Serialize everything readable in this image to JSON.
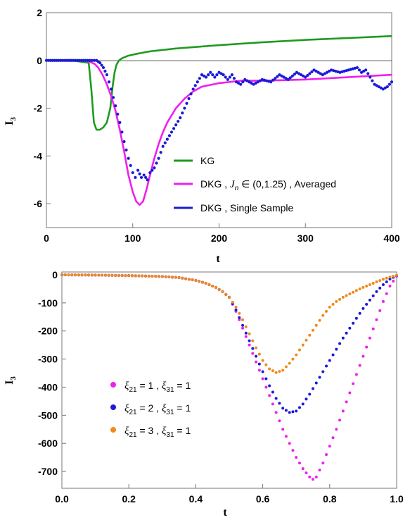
{
  "chart_data": [
    {
      "type": "line",
      "xlabel": "t",
      "ylabel": "I",
      "ylabel_sub": "3",
      "xlim": [
        0,
        400
      ],
      "ylim": [
        -7,
        2
      ],
      "xticks": [
        "0",
        "100",
        "200",
        "300",
        "400"
      ],
      "yticks": [
        "2",
        "0",
        "-2",
        "-4",
        "-6"
      ],
      "legend_position": "lower-right",
      "series": [
        {
          "name": "KG",
          "color": "#1f9a1f",
          "style": "line",
          "x": [
            0,
            30,
            49,
            52,
            55,
            58,
            62,
            66,
            70,
            74,
            77,
            79,
            81,
            84,
            88,
            95,
            105,
            120,
            150,
            200,
            250,
            300,
            350,
            400
          ],
          "y": [
            0,
            0,
            -0.1,
            -1.2,
            -2.6,
            -2.9,
            -2.9,
            -2.8,
            -2.6,
            -2.0,
            -1.0,
            -0.5,
            -0.2,
            0.0,
            0.1,
            0.2,
            0.28,
            0.38,
            0.5,
            0.64,
            0.76,
            0.86,
            0.94,
            1.02
          ]
        },
        {
          "name_parts": [
            "DKG , ",
            "J",
            "n",
            " ∈ (0,1.25) , Averaged"
          ],
          "color": "#ee1fee",
          "style": "line",
          "x": [
            0,
            40,
            50,
            56,
            60,
            65,
            70,
            75,
            80,
            85,
            90,
            95,
            100,
            104,
            108,
            112,
            116,
            120,
            125,
            130,
            135,
            140,
            150,
            160,
            170,
            180,
            200,
            225,
            250,
            300,
            350,
            400
          ],
          "y": [
            0,
            0,
            -0.05,
            -0.15,
            -0.3,
            -0.6,
            -1.0,
            -1.5,
            -2.1,
            -2.9,
            -3.8,
            -4.8,
            -5.5,
            -5.9,
            -6.05,
            -5.9,
            -5.4,
            -4.8,
            -4.1,
            -3.5,
            -3.0,
            -2.6,
            -2.0,
            -1.6,
            -1.3,
            -1.1,
            -0.95,
            -0.85,
            -0.85,
            -0.8,
            -0.7,
            -0.6
          ]
        },
        {
          "name": "DKG , Single Sample",
          "color": "#1a1ad8",
          "style": "dots",
          "x": [
            0,
            50,
            58,
            62,
            66,
            70,
            75,
            80,
            85,
            90,
            95,
            100,
            103,
            106,
            110,
            113,
            117,
            120,
            125,
            130,
            135,
            140,
            145,
            150,
            155,
            160,
            165,
            170,
            175,
            180,
            185,
            190,
            195,
            200,
            205,
            210,
            215,
            220,
            225,
            230,
            240,
            250,
            260,
            270,
            280,
            290,
            300,
            310,
            320,
            330,
            340,
            350,
            360,
            365,
            370,
            375,
            380,
            390,
            395,
            400
          ],
          "y": [
            0,
            0,
            0,
            -0.1,
            -0.3,
            -0.6,
            -1.2,
            -1.9,
            -2.6,
            -3.4,
            -4.1,
            -4.7,
            -4.9,
            -4.6,
            -4.9,
            -4.8,
            -5.0,
            -4.7,
            -4.5,
            -4.1,
            -3.6,
            -3.3,
            -3.0,
            -2.7,
            -2.4,
            -2.0,
            -1.6,
            -1.2,
            -0.9,
            -0.6,
            -0.7,
            -0.5,
            -0.7,
            -0.5,
            -0.6,
            -0.8,
            -0.6,
            -0.9,
            -1.0,
            -0.8,
            -1.0,
            -0.8,
            -0.9,
            -0.6,
            -0.8,
            -0.5,
            -0.7,
            -0.4,
            -0.6,
            -0.4,
            -0.5,
            -0.4,
            -0.3,
            -0.5,
            -0.4,
            -0.7,
            -1.0,
            -1.2,
            -1.1,
            -0.9
          ]
        }
      ]
    },
    {
      "type": "scatter",
      "xlabel": "t",
      "ylabel": "I",
      "ylabel_sub": "3",
      "xlim": [
        0,
        1
      ],
      "ylim": [
        -760,
        10
      ],
      "xticks": [
        "0.0",
        "0.2",
        "0.4",
        "0.6",
        "0.8",
        "1.0"
      ],
      "yticks": [
        "0",
        "-100",
        "-200",
        "-300",
        "-400",
        "-500",
        "-600",
        "-700"
      ],
      "legend_position": "lower-left",
      "series": [
        {
          "name_parts": [
            "ξ",
            "21",
            " = 1 , ",
            "ξ",
            "31",
            " = 1"
          ],
          "color": "#ee1fee",
          "x": [
            0,
            0.1,
            0.2,
            0.3,
            0.35,
            0.4,
            0.43,
            0.46,
            0.48,
            0.5,
            0.52,
            0.54,
            0.56,
            0.58,
            0.6,
            0.62,
            0.64,
            0.66,
            0.68,
            0.7,
            0.72,
            0.74,
            0.75,
            0.76,
            0.78,
            0.8,
            0.82,
            0.84,
            0.86,
            0.88,
            0.9,
            0.92,
            0.94,
            0.96,
            0.98,
            1.0
          ],
          "y": [
            0,
            -1,
            -3,
            -6,
            -10,
            -20,
            -30,
            -45,
            -60,
            -80,
            -130,
            -190,
            -250,
            -310,
            -370,
            -430,
            -490,
            -550,
            -600,
            -650,
            -690,
            -720,
            -728,
            -720,
            -670,
            -610,
            -550,
            -485,
            -420,
            -355,
            -290,
            -225,
            -160,
            -95,
            -40,
            -5
          ]
        },
        {
          "name_parts": [
            "ξ",
            "21",
            " = 2 , ",
            "ξ",
            "31",
            " = 1"
          ],
          "color": "#1a1ad8",
          "x": [
            0,
            0.1,
            0.2,
            0.3,
            0.35,
            0.4,
            0.43,
            0.46,
            0.48,
            0.5,
            0.52,
            0.54,
            0.56,
            0.58,
            0.6,
            0.62,
            0.64,
            0.66,
            0.68,
            0.7,
            0.72,
            0.74,
            0.76,
            0.78,
            0.8,
            0.82,
            0.84,
            0.86,
            0.88,
            0.9,
            0.92,
            0.94,
            0.96,
            0.98,
            1.0
          ],
          "y": [
            0,
            -1,
            -3,
            -6,
            -10,
            -20,
            -30,
            -45,
            -60,
            -80,
            -125,
            -180,
            -235,
            -290,
            -345,
            -395,
            -440,
            -475,
            -490,
            -485,
            -460,
            -425,
            -385,
            -345,
            -305,
            -265,
            -225,
            -190,
            -155,
            -120,
            -90,
            -60,
            -35,
            -15,
            -3
          ]
        },
        {
          "name_parts": [
            "ξ",
            "21",
            " = 3 , ",
            "ξ",
            "31",
            " = 1"
          ],
          "color": "#f08a1c",
          "x": [
            0,
            0.1,
            0.2,
            0.3,
            0.35,
            0.4,
            0.43,
            0.46,
            0.48,
            0.5,
            0.52,
            0.54,
            0.56,
            0.58,
            0.6,
            0.62,
            0.64,
            0.66,
            0.68,
            0.7,
            0.72,
            0.74,
            0.76,
            0.78,
            0.8,
            0.82,
            0.84,
            0.86,
            0.88,
            0.9,
            0.92,
            0.94,
            0.96,
            0.98,
            1.0
          ],
          "y": [
            0,
            -1,
            -3,
            -6,
            -10,
            -20,
            -30,
            -45,
            -60,
            -80,
            -115,
            -160,
            -210,
            -260,
            -305,
            -335,
            -348,
            -340,
            -315,
            -285,
            -250,
            -215,
            -180,
            -145,
            -115,
            -95,
            -80,
            -68,
            -56,
            -45,
            -35,
            -25,
            -16,
            -8,
            -2
          ]
        }
      ]
    }
  ]
}
